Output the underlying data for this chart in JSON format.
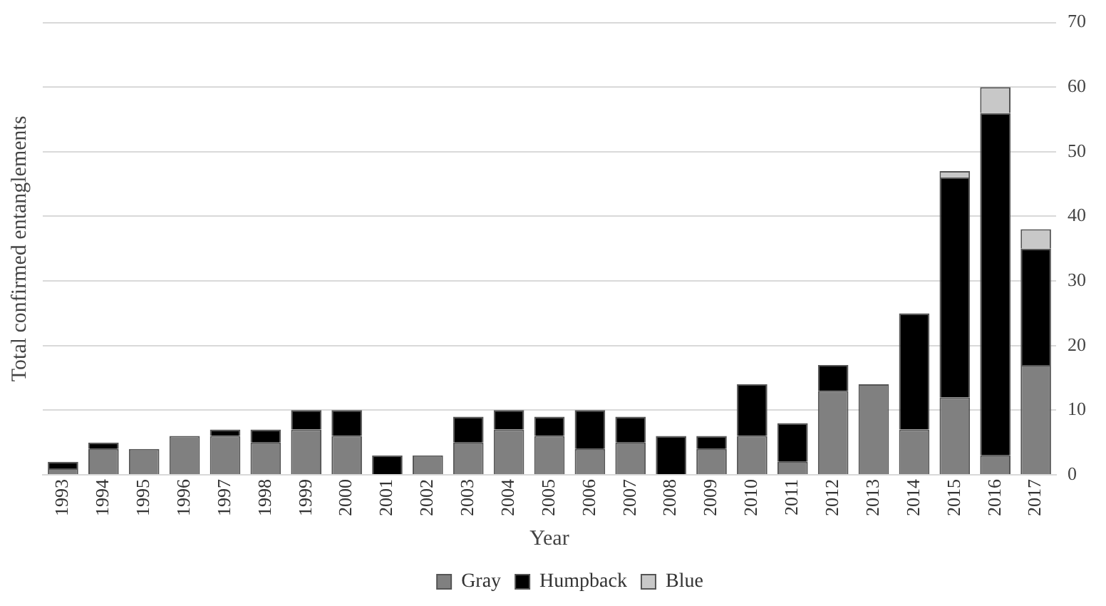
{
  "chart_data": {
    "type": "bar",
    "stacked": true,
    "xlabel": "Year",
    "ylabel": "Total confirmed entanglements",
    "categories": [
      "1993",
      "1994",
      "1995",
      "1996",
      "1997",
      "1998",
      "1999",
      "2000",
      "2001",
      "2002",
      "2003",
      "2004",
      "2005",
      "2006",
      "2007",
      "2008",
      "2009",
      "2010",
      "2011",
      "2012",
      "2013",
      "2014",
      "2015",
      "2016",
      "2017"
    ],
    "series": [
      {
        "name": "Gray",
        "color": "#808080",
        "values": [
          1,
          4,
          4,
          6,
          6,
          5,
          7,
          6,
          0,
          3,
          5,
          7,
          6,
          4,
          5,
          0,
          4,
          6,
          2,
          13,
          14,
          7,
          12,
          3,
          17
        ]
      },
      {
        "name": "Humpback",
        "color": "#000000",
        "values": [
          1,
          1,
          0,
          0,
          1,
          2,
          3,
          4,
          3,
          0,
          4,
          3,
          3,
          6,
          4,
          6,
          2,
          8,
          6,
          4,
          0,
          18,
          34,
          53,
          18
        ]
      },
      {
        "name": "Blue",
        "color": "#c8c8c8",
        "values": [
          0,
          0,
          0,
          0,
          0,
          0,
          0,
          0,
          0,
          0,
          0,
          0,
          0,
          0,
          0,
          0,
          0,
          0,
          0,
          0,
          0,
          0,
          1,
          4,
          3
        ]
      }
    ],
    "ylim": [
      0,
      70
    ],
    "yticks": [
      0,
      10,
      20,
      30,
      40,
      50,
      60,
      70
    ],
    "grid": "y",
    "legend": "bottom"
  }
}
